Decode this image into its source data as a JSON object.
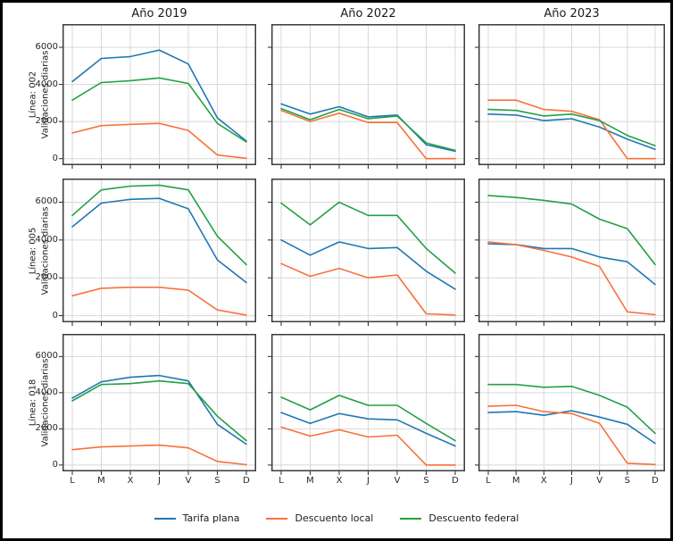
{
  "figure": {
    "background": "#ffffff",
    "border_color": "#000000",
    "grid_color": "#d8d8d8",
    "frame_color": "#3b3b3b"
  },
  "col_titles": [
    "Año 2019",
    "Año 2022",
    "Año 2023"
  ],
  "row_labels": [
    {
      "line1": "Línea: 002",
      "line2": "Validaciones diarias"
    },
    {
      "line1": "Línea: 005",
      "line2": "Validaciones diarias"
    },
    {
      "line1": "Línea: 018",
      "line2": "Validaciones diarias"
    }
  ],
  "x_ticklabels": [
    "L",
    "M",
    "X",
    "J",
    "V",
    "S",
    "D"
  ],
  "y_ticks": [
    0,
    2000,
    4000,
    6000
  ],
  "legend": {
    "items": [
      {
        "label": "Tarifa plana",
        "color": "#1f77b4"
      },
      {
        "label": "Descuento local",
        "color": "#f8713b"
      },
      {
        "label": "Descuento federal",
        "color": "#22a044"
      }
    ]
  },
  "series_colors": {
    "Tarifa plana": "#1f77b4",
    "Descuento local": "#f8713b",
    "Descuento federal": "#22a044"
  },
  "chart_data": [
    {
      "type": "line",
      "row": "Línea: 002",
      "col": "Año 2019",
      "x": [
        "L",
        "M",
        "X",
        "J",
        "V",
        "S",
        "D"
      ],
      "ylim": [
        -350,
        7250
      ],
      "series": [
        {
          "name": "Tarifa plana",
          "values": [
            4150,
            5400,
            5500,
            5850,
            5100,
            2200,
            950
          ]
        },
        {
          "name": "Descuento local",
          "values": [
            1380,
            1780,
            1850,
            1900,
            1520,
            200,
            20
          ]
        },
        {
          "name": "Descuento federal",
          "values": [
            3150,
            4100,
            4200,
            4350,
            4050,
            1900,
            900
          ]
        }
      ]
    },
    {
      "type": "line",
      "row": "Línea: 002",
      "col": "Año 2022",
      "x": [
        "L",
        "M",
        "X",
        "J",
        "V",
        "S",
        "D"
      ],
      "ylim": [
        -350,
        7250
      ],
      "series": [
        {
          "name": "Tarifa plana",
          "values": [
            2950,
            2400,
            2800,
            2250,
            2350,
            750,
            400
          ]
        },
        {
          "name": "Descuento local",
          "values": [
            2600,
            2000,
            2450,
            1950,
            1950,
            0,
            0
          ]
        },
        {
          "name": "Descuento federal",
          "values": [
            2700,
            2100,
            2650,
            2150,
            2300,
            850,
            450
          ]
        }
      ]
    },
    {
      "type": "line",
      "row": "Línea: 002",
      "col": "Año 2023",
      "x": [
        "L",
        "M",
        "X",
        "J",
        "V",
        "S",
        "D"
      ],
      "ylim": [
        -350,
        7250
      ],
      "series": [
        {
          "name": "Tarifa plana",
          "values": [
            2400,
            2350,
            2050,
            2150,
            1700,
            1050,
            500
          ]
        },
        {
          "name": "Descuento local",
          "values": [
            3150,
            3150,
            2650,
            2550,
            2100,
            0,
            0
          ]
        },
        {
          "name": "Descuento federal",
          "values": [
            2650,
            2600,
            2300,
            2400,
            2050,
            1250,
            700
          ]
        }
      ]
    },
    {
      "type": "line",
      "row": "Línea: 005",
      "col": "Año 2019",
      "x": [
        "L",
        "M",
        "X",
        "J",
        "V",
        "S",
        "D"
      ],
      "ylim": [
        -350,
        7250
      ],
      "series": [
        {
          "name": "Tarifa plana",
          "values": [
            4700,
            5950,
            6150,
            6200,
            5650,
            2950,
            1750
          ]
        },
        {
          "name": "Descuento local",
          "values": [
            1050,
            1450,
            1500,
            1500,
            1350,
            300,
            30
          ]
        },
        {
          "name": "Descuento federal",
          "values": [
            5300,
            6650,
            6850,
            6900,
            6650,
            4200,
            2700
          ]
        }
      ]
    },
    {
      "type": "line",
      "row": "Línea: 005",
      "col": "Año 2022",
      "x": [
        "L",
        "M",
        "X",
        "J",
        "V",
        "S",
        "D"
      ],
      "ylim": [
        -350,
        7250
      ],
      "series": [
        {
          "name": "Tarifa plana",
          "values": [
            4000,
            3200,
            3900,
            3550,
            3600,
            2350,
            1400
          ]
        },
        {
          "name": "Descuento local",
          "values": [
            2750,
            2080,
            2500,
            2000,
            2150,
            100,
            30
          ]
        },
        {
          "name": "Descuento federal",
          "values": [
            5950,
            4800,
            6000,
            5300,
            5300,
            3550,
            2250
          ]
        }
      ]
    },
    {
      "type": "line",
      "row": "Línea: 005",
      "col": "Año 2023",
      "x": [
        "L",
        "M",
        "X",
        "J",
        "V",
        "S",
        "D"
      ],
      "ylim": [
        -350,
        7250
      ],
      "series": [
        {
          "name": "Tarifa plana",
          "values": [
            3800,
            3750,
            3550,
            3550,
            3100,
            2850,
            1650
          ]
        },
        {
          "name": "Descuento local",
          "values": [
            3900,
            3750,
            3450,
            3100,
            2600,
            200,
            50
          ]
        },
        {
          "name": "Descuento federal",
          "values": [
            6350,
            6250,
            6100,
            5900,
            5100,
            4600,
            2700
          ]
        }
      ]
    },
    {
      "type": "line",
      "row": "Línea: 018",
      "col": "Año 2019",
      "x": [
        "L",
        "M",
        "X",
        "J",
        "V",
        "S",
        "D"
      ],
      "ylim": [
        -350,
        7250
      ],
      "series": [
        {
          "name": "Tarifa plana",
          "values": [
            3700,
            4600,
            4850,
            4950,
            4650,
            2250,
            1150
          ]
        },
        {
          "name": "Descuento local",
          "values": [
            850,
            1000,
            1050,
            1100,
            950,
            200,
            20
          ]
        },
        {
          "name": "Descuento federal",
          "values": [
            3550,
            4450,
            4500,
            4650,
            4500,
            2700,
            1350
          ]
        }
      ]
    },
    {
      "type": "line",
      "row": "Línea: 018",
      "col": "Año 2022",
      "x": [
        "L",
        "M",
        "X",
        "J",
        "V",
        "S",
        "D"
      ],
      "ylim": [
        -350,
        7250
      ],
      "series": [
        {
          "name": "Tarifa plana",
          "values": [
            2900,
            2300,
            2850,
            2550,
            2500,
            1750,
            1050
          ]
        },
        {
          "name": "Descuento local",
          "values": [
            2100,
            1600,
            1950,
            1550,
            1650,
            0,
            0
          ]
        },
        {
          "name": "Descuento federal",
          "values": [
            3750,
            3050,
            3850,
            3300,
            3300,
            2300,
            1350
          ]
        }
      ]
    },
    {
      "type": "line",
      "row": "Línea: 018",
      "col": "Año 2023",
      "x": [
        "L",
        "M",
        "X",
        "J",
        "V",
        "S",
        "D"
      ],
      "ylim": [
        -350,
        7250
      ],
      "series": [
        {
          "name": "Tarifa plana",
          "values": [
            2900,
            2950,
            2750,
            3000,
            2650,
            2250,
            1200
          ]
        },
        {
          "name": "Descuento local",
          "values": [
            3250,
            3300,
            2950,
            2850,
            2300,
            100,
            30
          ]
        },
        {
          "name": "Descuento federal",
          "values": [
            4450,
            4450,
            4300,
            4350,
            3850,
            3200,
            1750
          ]
        }
      ]
    }
  ]
}
